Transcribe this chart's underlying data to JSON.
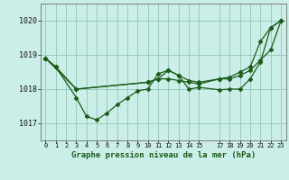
{
  "title": "Graphe pression niveau de la mer (hPa)",
  "bg_color": "#cceee8",
  "grid_color": "#99ccbb",
  "line_color": "#1a5c1a",
  "xlim": [
    -0.5,
    23.5
  ],
  "ylim": [
    1016.5,
    1020.5
  ],
  "yticks": [
    1017,
    1018,
    1019,
    1020
  ],
  "xtick_positions": [
    0,
    1,
    2,
    3,
    4,
    5,
    6,
    7,
    8,
    9,
    10,
    11,
    12,
    13,
    14,
    15,
    17,
    18,
    19,
    20,
    21,
    22,
    23
  ],
  "xtick_labels": [
    "0",
    "1",
    "2",
    "3",
    "4",
    "5",
    "6",
    "7",
    "8",
    "9",
    "10",
    "11",
    "12",
    "13",
    "14",
    "15",
    "17",
    "18",
    "19",
    "20",
    "21",
    "22",
    "23"
  ],
  "series": [
    {
      "x": [
        0,
        1,
        3,
        4,
        5,
        6,
        7,
        8,
        9,
        10,
        11,
        12,
        13,
        14,
        15,
        17,
        18,
        19,
        20,
        21,
        22,
        23
      ],
      "y": [
        1018.9,
        1018.65,
        1017.75,
        1017.2,
        1017.1,
        1017.3,
        1017.55,
        1017.75,
        1017.95,
        1018.0,
        1018.45,
        1018.55,
        1018.4,
        1018.0,
        1018.05,
        1017.98,
        1018.0,
        1018.0,
        1018.3,
        1018.8,
        1019.8,
        1020.0
      ]
    },
    {
      "x": [
        0,
        1,
        3,
        10,
        11,
        12,
        13,
        14,
        15,
        17,
        18,
        19,
        20,
        21,
        22,
        23
      ],
      "y": [
        1018.9,
        1018.65,
        1018.0,
        1018.2,
        1018.3,
        1018.3,
        1018.25,
        1018.2,
        1018.15,
        1018.3,
        1018.3,
        1018.4,
        1018.55,
        1018.85,
        1019.15,
        1020.0
      ]
    },
    {
      "x": [
        0,
        3,
        10,
        11,
        12,
        13,
        14,
        15,
        17,
        18,
        19,
        20,
        21,
        22,
        23
      ],
      "y": [
        1018.9,
        1018.0,
        1018.2,
        1018.3,
        1018.55,
        1018.4,
        1018.25,
        1018.2,
        1018.3,
        1018.35,
        1018.5,
        1018.65,
        1019.4,
        1019.8,
        1020.0
      ]
    }
  ],
  "marker": "D",
  "markersize": 2.5,
  "linewidth": 0.9
}
